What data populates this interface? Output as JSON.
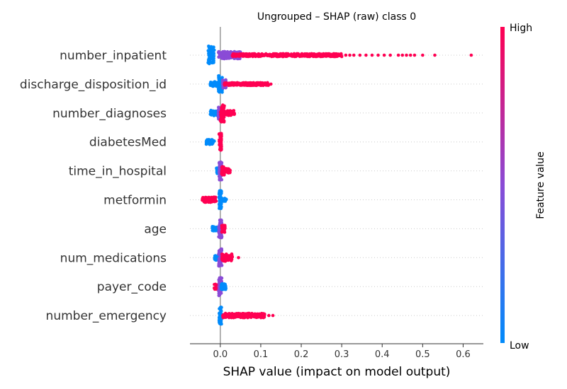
{
  "colors": {
    "low": "#008bfb",
    "mid": "#8a4bd6",
    "high": "#ff0052",
    "zero_line": "#999999",
    "row_guide": "#cccccc"
  },
  "chart_data": {
    "type": "scatter",
    "subtype": "shap-beeswarm",
    "title": "Ungrouped – SHAP (raw) class 0",
    "xlabel": "SHAP value (impact on model output)",
    "xlim": [
      -0.075,
      0.65
    ],
    "xticks": [
      0.0,
      0.1,
      0.2,
      0.3,
      0.4,
      0.5,
      0.6
    ],
    "tick_labels": [
      "0.0",
      "0.1",
      "0.2",
      "0.3",
      "0.4",
      "0.5",
      "0.6"
    ],
    "colorbar": {
      "high_label": "High",
      "low_label": "Low",
      "title": "Feature value"
    },
    "grid": false,
    "features": [
      {
        "name": "number_inpatient",
        "clusters": [
          {
            "from": -0.03,
            "to": -0.015,
            "width": 0.75,
            "color": "low"
          },
          {
            "from": -0.005,
            "to": 0.01,
            "width": 0.3,
            "color": "mid"
          },
          {
            "from": 0.01,
            "to": 0.05,
            "width": 0.3,
            "color": "mid"
          },
          {
            "from": 0.03,
            "to": 0.3,
            "width": 0.12,
            "color": "high"
          }
        ],
        "points": [
          {
            "x": 0.31,
            "color": "high"
          },
          {
            "x": 0.32,
            "color": "high"
          },
          {
            "x": 0.33,
            "color": "high"
          },
          {
            "x": 0.345,
            "color": "high"
          },
          {
            "x": 0.36,
            "color": "high"
          },
          {
            "x": 0.375,
            "color": "high"
          },
          {
            "x": 0.39,
            "color": "high"
          },
          {
            "x": 0.405,
            "color": "high"
          },
          {
            "x": 0.42,
            "color": "high"
          },
          {
            "x": 0.44,
            "color": "high"
          },
          {
            "x": 0.45,
            "color": "high"
          },
          {
            "x": 0.46,
            "color": "high"
          },
          {
            "x": 0.47,
            "color": "high"
          },
          {
            "x": 0.48,
            "color": "high"
          },
          {
            "x": 0.5,
            "color": "high"
          },
          {
            "x": 0.53,
            "color": "high"
          },
          {
            "x": 0.62,
            "color": "high"
          }
        ]
      },
      {
        "name": "discharge_disposition_id",
        "clusters": [
          {
            "from": -0.005,
            "to": 0.005,
            "width": 0.7,
            "color": "low"
          },
          {
            "from": -0.025,
            "to": 0.015,
            "width": 0.2,
            "color": "low"
          },
          {
            "from": 0.005,
            "to": 0.015,
            "width": 0.35,
            "color": "mid"
          },
          {
            "from": 0.01,
            "to": 0.12,
            "width": 0.12,
            "color": "high"
          }
        ],
        "points": [
          {
            "x": 0.125,
            "color": "high"
          }
        ]
      },
      {
        "name": "number_diagnoses",
        "clusters": [
          {
            "from": -0.025,
            "to": -0.005,
            "width": 0.22,
            "color": "low"
          },
          {
            "from": -0.005,
            "to": 0.005,
            "width": 0.5,
            "color": "mid"
          },
          {
            "from": 0.0,
            "to": 0.01,
            "width": 0.75,
            "color": "high"
          },
          {
            "from": 0.01,
            "to": 0.035,
            "width": 0.2,
            "color": "high"
          }
        ],
        "points": []
      },
      {
        "name": "diabetesMed",
        "clusters": [
          {
            "from": -0.035,
            "to": -0.015,
            "width": 0.22,
            "color": "low"
          },
          {
            "from": -0.003,
            "to": 0.003,
            "width": 0.7,
            "color": "high"
          }
        ],
        "points": []
      },
      {
        "name": "time_in_hospital",
        "clusters": [
          {
            "from": -0.01,
            "to": -0.002,
            "width": 0.25,
            "color": "low"
          },
          {
            "from": -0.003,
            "to": 0.004,
            "width": 0.75,
            "color": "mid"
          },
          {
            "from": 0.003,
            "to": 0.01,
            "width": 0.35,
            "color": "high"
          },
          {
            "from": 0.01,
            "to": 0.025,
            "width": 0.2,
            "color": "high"
          }
        ],
        "points": []
      },
      {
        "name": "metformin",
        "clusters": [
          {
            "from": -0.045,
            "to": -0.01,
            "width": 0.22,
            "color": "high"
          },
          {
            "from": -0.003,
            "to": 0.003,
            "width": 0.75,
            "color": "low"
          },
          {
            "from": 0.005,
            "to": 0.015,
            "width": 0.12,
            "color": "low"
          }
        ],
        "points": []
      },
      {
        "name": "age",
        "clusters": [
          {
            "from": -0.02,
            "to": -0.005,
            "width": 0.2,
            "color": "low"
          },
          {
            "from": -0.004,
            "to": 0.004,
            "width": 0.75,
            "color": "mid"
          },
          {
            "from": 0.003,
            "to": 0.012,
            "width": 0.3,
            "color": "high"
          }
        ],
        "points": []
      },
      {
        "name": "num_medications",
        "clusters": [
          {
            "from": -0.015,
            "to": -0.003,
            "width": 0.22,
            "color": "low"
          },
          {
            "from": -0.004,
            "to": 0.004,
            "width": 0.75,
            "color": "mid"
          },
          {
            "from": 0.004,
            "to": 0.03,
            "width": 0.3,
            "color": "high"
          }
        ],
        "points": [
          {
            "x": 0.045,
            "color": "high"
          }
        ]
      },
      {
        "name": "payer_code",
        "clusters": [
          {
            "from": -0.015,
            "to": -0.003,
            "width": 0.22,
            "color": "high"
          },
          {
            "from": -0.004,
            "to": 0.004,
            "width": 0.75,
            "color": "mid"
          },
          {
            "from": 0.002,
            "to": 0.015,
            "width": 0.25,
            "color": "low"
          }
        ],
        "points": []
      },
      {
        "name": "number_emergency",
        "clusters": [
          {
            "from": -0.003,
            "to": 0.003,
            "width": 0.75,
            "color": "low"
          },
          {
            "from": 0.005,
            "to": 0.11,
            "width": 0.18,
            "color": "high"
          }
        ],
        "points": [
          {
            "x": 0.12,
            "color": "high"
          },
          {
            "x": 0.13,
            "color": "high"
          }
        ]
      }
    ]
  }
}
